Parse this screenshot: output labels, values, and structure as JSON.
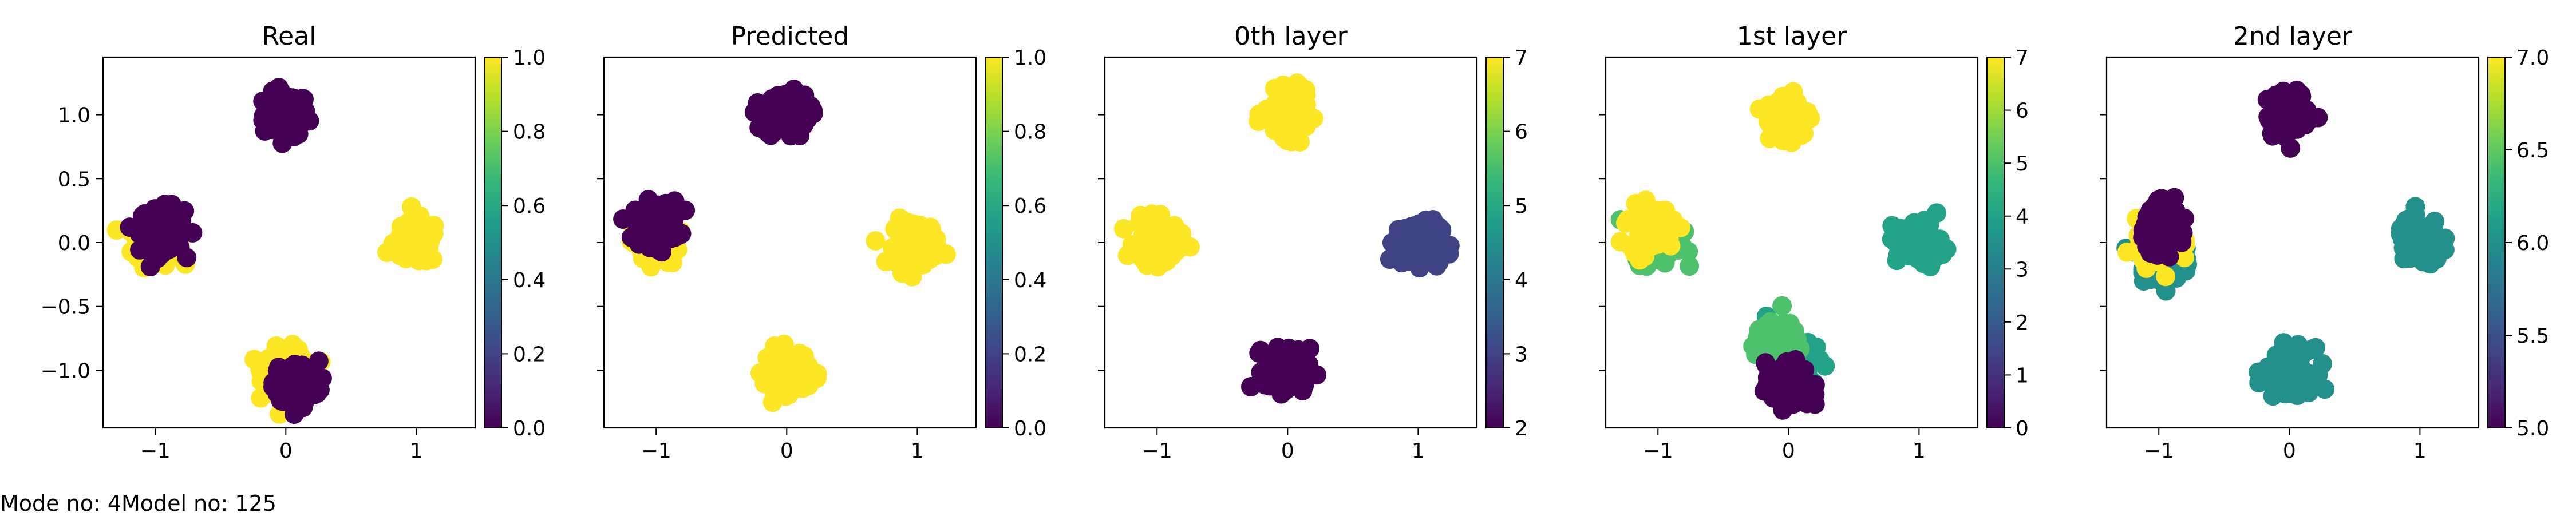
{
  "caption": "Mode no: 4Model no: 125",
  "colormap": [
    "#440154",
    "#482878",
    "#3e4989",
    "#31688e",
    "#26828e",
    "#1f9e89",
    "#35b779",
    "#6ece58",
    "#b5de2b",
    "#fde725"
  ],
  "chart_data": [
    {
      "type": "scatter",
      "title": "Real",
      "xlim": [
        -1.4,
        1.45
      ],
      "ylim": [
        -1.45,
        1.45
      ],
      "xticks": [
        -1,
        0,
        1
      ],
      "yticks": [
        1.0,
        0.5,
        0.0,
        -0.5,
        -1.0
      ],
      "colorbar": {
        "min": 0.0,
        "max": 1.0,
        "ticks": [
          0.0,
          0.2,
          0.4,
          0.6,
          0.8,
          1.0
        ]
      },
      "series": [
        {
          "cx": 0.0,
          "cy": 1.0,
          "value": 0.0
        },
        {
          "cx": -1.0,
          "cy": 0.0,
          "value": 1.0
        },
        {
          "cx": -0.95,
          "cy": 0.1,
          "value": 0.0
        },
        {
          "cx": 1.0,
          "cy": 0.0,
          "value": 1.0
        },
        {
          "cx": 0.0,
          "cy": -1.0,
          "value": 1.0
        },
        {
          "cx": 0.08,
          "cy": -1.1,
          "value": 0.0
        }
      ]
    },
    {
      "type": "scatter",
      "title": "Predicted",
      "xlim": [
        -1.4,
        1.45
      ],
      "ylim": [
        -1.45,
        1.45
      ],
      "xticks": [
        -1,
        0,
        1
      ],
      "yticks": [
        1.0,
        0.5,
        0.0,
        -0.5,
        -1.0
      ],
      "colorbar": {
        "min": 0.0,
        "max": 1.0,
        "ticks": [
          0.0,
          0.2,
          0.4,
          0.6,
          0.8,
          1.0
        ]
      },
      "series": [
        {
          "cx": 0.0,
          "cy": 1.0,
          "value": 0.0
        },
        {
          "cx": -1.0,
          "cy": 0.0,
          "value": 1.0
        },
        {
          "cx": -1.0,
          "cy": 0.15,
          "value": 0.0
        },
        {
          "cx": 1.0,
          "cy": 0.0,
          "value": 1.0
        },
        {
          "cx": 0.0,
          "cy": -1.0,
          "value": 1.0
        }
      ]
    },
    {
      "type": "scatter",
      "title": "0th layer",
      "xlim": [
        -1.4,
        1.45
      ],
      "ylim": [
        -1.45,
        1.45
      ],
      "xticks": [
        -1,
        0,
        1
      ],
      "yticks": [
        1.0,
        0.5,
        0.0,
        -0.5,
        -1.0
      ],
      "colorbar": {
        "min": 2,
        "max": 7,
        "ticks": [
          2,
          3,
          4,
          5,
          6,
          7
        ]
      },
      "series": [
        {
          "cx": 0.0,
          "cy": 1.0,
          "value": 7
        },
        {
          "cx": -1.0,
          "cy": 0.0,
          "value": 7
        },
        {
          "cx": 1.0,
          "cy": 0.0,
          "value": 3
        },
        {
          "cx": 0.0,
          "cy": -1.0,
          "value": 2
        }
      ]
    },
    {
      "type": "scatter",
      "title": "1st layer",
      "xlim": [
        -1.4,
        1.45
      ],
      "ylim": [
        -1.45,
        1.45
      ],
      "xticks": [
        -1,
        0,
        1
      ],
      "yticks": [
        1.0,
        0.5,
        0.0,
        -0.5,
        -1.0
      ],
      "colorbar": {
        "min": 0,
        "max": 7,
        "ticks": [
          0,
          1,
          2,
          3,
          4,
          5,
          6,
          7
        ]
      },
      "series": [
        {
          "cx": 0.0,
          "cy": 1.0,
          "value": 7
        },
        {
          "cx": -1.0,
          "cy": 0.0,
          "value": 5
        },
        {
          "cx": -1.05,
          "cy": 0.12,
          "value": 7
        },
        {
          "cx": 1.0,
          "cy": 0.0,
          "value": 4
        },
        {
          "cx": 0.0,
          "cy": -0.88,
          "value": 4
        },
        {
          "cx": -0.08,
          "cy": -0.8,
          "value": 5
        },
        {
          "cx": 0.0,
          "cy": -1.12,
          "value": 0
        }
      ]
    },
    {
      "type": "scatter",
      "title": "2nd layer",
      "xlim": [
        -1.4,
        1.45
      ],
      "ylim": [
        -1.45,
        1.45
      ],
      "xticks": [
        -1,
        0,
        1
      ],
      "yticks": [
        1.0,
        0.5,
        0.0,
        -0.5,
        -1.0
      ],
      "colorbar": {
        "min": 5.0,
        "max": 7.0,
        "ticks": [
          5.0,
          5.5,
          6.0,
          6.5,
          7.0
        ]
      },
      "series": [
        {
          "cx": 0.0,
          "cy": 1.0,
          "value": 5.0
        },
        {
          "cx": -1.0,
          "cy": -0.12,
          "value": 6.0
        },
        {
          "cx": -1.0,
          "cy": 0.0,
          "value": 7.0
        },
        {
          "cx": -0.95,
          "cy": 0.12,
          "value": 5.0
        },
        {
          "cx": 1.0,
          "cy": 0.0,
          "value": 6.0
        },
        {
          "cx": 0.0,
          "cy": -1.0,
          "value": 6.0
        }
      ]
    }
  ]
}
